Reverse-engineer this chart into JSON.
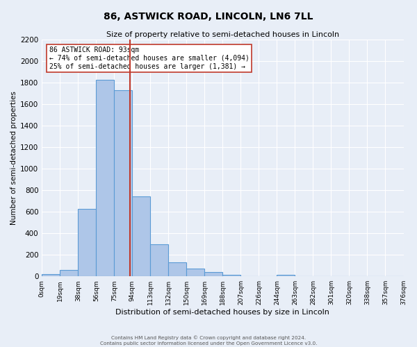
{
  "title": "86, ASTWICK ROAD, LINCOLN, LN6 7LL",
  "subtitle": "Size of property relative to semi-detached houses in Lincoln",
  "xlabel": "Distribution of semi-detached houses by size in Lincoln",
  "ylabel": "Number of semi-detached properties",
  "bin_labels": [
    "0sqm",
    "19sqm",
    "38sqm",
    "56sqm",
    "75sqm",
    "94sqm",
    "113sqm",
    "132sqm",
    "150sqm",
    "169sqm",
    "188sqm",
    "207sqm",
    "226sqm",
    "244sqm",
    "263sqm",
    "282sqm",
    "301sqm",
    "320sqm",
    "338sqm",
    "357sqm",
    "376sqm"
  ],
  "bar_heights": [
    20,
    60,
    625,
    1830,
    1730,
    740,
    300,
    130,
    70,
    40,
    15,
    0,
    0,
    15,
    0,
    0,
    0,
    0,
    0,
    0
  ],
  "n_bins": 20,
  "bar_color": "#aec6e8",
  "bar_edge_color": "#5b9bd5",
  "property_bin_index": 4.89,
  "property_line_color": "#c0392b",
  "annotation_title": "86 ASTWICK ROAD: 93sqm",
  "annotation_line1": "← 74% of semi-detached houses are smaller (4,094)",
  "annotation_line2": "25% of semi-detached houses are larger (1,381) →",
  "annotation_box_color": "#ffffff",
  "annotation_box_edge": "#c0392b",
  "ylim": [
    0,
    2200
  ],
  "yticks": [
    0,
    200,
    400,
    600,
    800,
    1000,
    1200,
    1400,
    1600,
    1800,
    2000,
    2200
  ],
  "bg_color": "#e8eef7",
  "grid_color": "#ffffff",
  "footer1": "Contains HM Land Registry data © Crown copyright and database right 2024.",
  "footer2": "Contains public sector information licensed under the Open Government Licence v3.0."
}
